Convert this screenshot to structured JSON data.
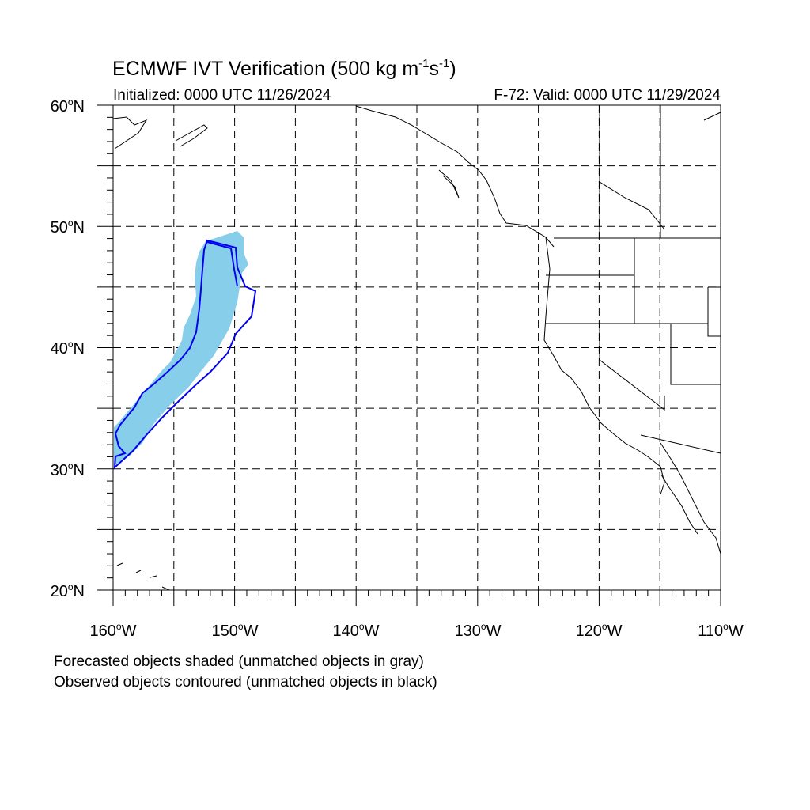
{
  "title": {
    "main": "ECMWF IVT Verification (500 kg m",
    "exp1": "-1",
    "mid": "s",
    "exp2": "-1",
    "end": ")"
  },
  "subtitle": {
    "left": "Initialized: 0000 UTC 11/26/2024",
    "right": "F-72: Valid: 0000 UTC 11/29/2024"
  },
  "map": {
    "lon_range": [
      -160,
      -110
    ],
    "lat_range": [
      20,
      60
    ],
    "gridline_style": "dashed",
    "lat_labels": [
      {
        "text": "60",
        "suffix": "N"
      },
      {
        "text": "50",
        "suffix": "N"
      },
      {
        "text": "40",
        "suffix": "N"
      },
      {
        "text": "30",
        "suffix": "N"
      },
      {
        "text": "20",
        "suffix": "N"
      }
    ],
    "lon_labels": [
      {
        "text": "160",
        "suffix": "W"
      },
      {
        "text": "150",
        "suffix": "W"
      },
      {
        "text": "140",
        "suffix": "W"
      },
      {
        "text": "130",
        "suffix": "W"
      },
      {
        "text": "120",
        "suffix": "W"
      },
      {
        "text": "110",
        "suffix": "W"
      }
    ],
    "forecast_fill_color": "#87ceeb",
    "observed_contour_color": "#0000ee",
    "coast_color": "#000000"
  },
  "notes": {
    "line1": "Forecasted objects shaded (unmatched objects in gray)",
    "line2": "Observed objects contoured (unmatched objects in black)"
  }
}
